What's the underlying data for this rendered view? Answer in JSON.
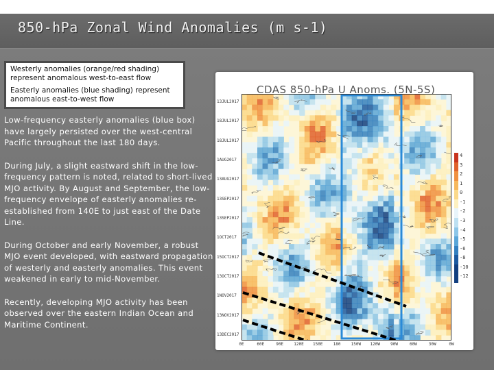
{
  "slide": {
    "title": "850-hPa Zonal Wind Anomalies (m s-1)"
  },
  "legend": {
    "westerly": "Westerly anomalies (orange/red shading) represent anomalous west-to-east flow",
    "easterly": "Easterly anomalies (blue shading) represent anomalous east-to-west flow"
  },
  "bullets": [
    "Low-frequency easterly anomalies (blue box) have largely persisted over the west-central Pacific throughout the last 180 days.",
    "During July, a slight eastward shift in the low-frequency pattern is noted, related to short-lived MJO activity. By August and September, the low-frequency envelope of easterly anomalies re-established from 140E to just east of the Date Line.",
    "During October and early November, a robust MJO event developed, with eastward propagation of westerly and easterly anomalies. This event weakened in early to mid-November.",
    "Recently, developing MJO activity has been observed over the eastern Indian Ocean and Maritime Continent."
  ],
  "figure": {
    "title": "CDAS 850-hPa U Anoms. (5N-5S)",
    "dates": [
      "13JUL2017",
      "18JUL2017",
      "18JUL2017",
      "1AUG2017",
      "13AUG2017",
      "13SEP2017",
      "13SEP2017",
      "1OCT2017",
      "15OCT2017",
      "13OCT2017",
      "1NOV2017",
      "13NOV2017",
      "13DEC2017"
    ],
    "lons": [
      "0E",
      "60E",
      "90E",
      "120E",
      "150E",
      "180",
      "150W",
      "120W",
      "90W",
      "60W",
      "30W",
      "0W"
    ],
    "colorbar": [
      "4",
      "3",
      "2",
      "1",
      "0",
      "-1",
      "-2",
      "-3",
      "-4",
      "-5",
      "-6",
      "-8",
      "-10",
      "-12"
    ],
    "colors": {
      "positive": [
        "#c8341e",
        "#e0622c",
        "#f09040",
        "#f7b85c",
        "#fbd98a",
        "#fdf0c0"
      ],
      "negative": [
        "#e8f4fb",
        "#bde0f2",
        "#8cc6e8",
        "#5aa6d8",
        "#3480c0",
        "#1d5aa0",
        "#123f80"
      ],
      "blue_box": "#2a8ad8",
      "mjo_lines": "#000000"
    }
  }
}
